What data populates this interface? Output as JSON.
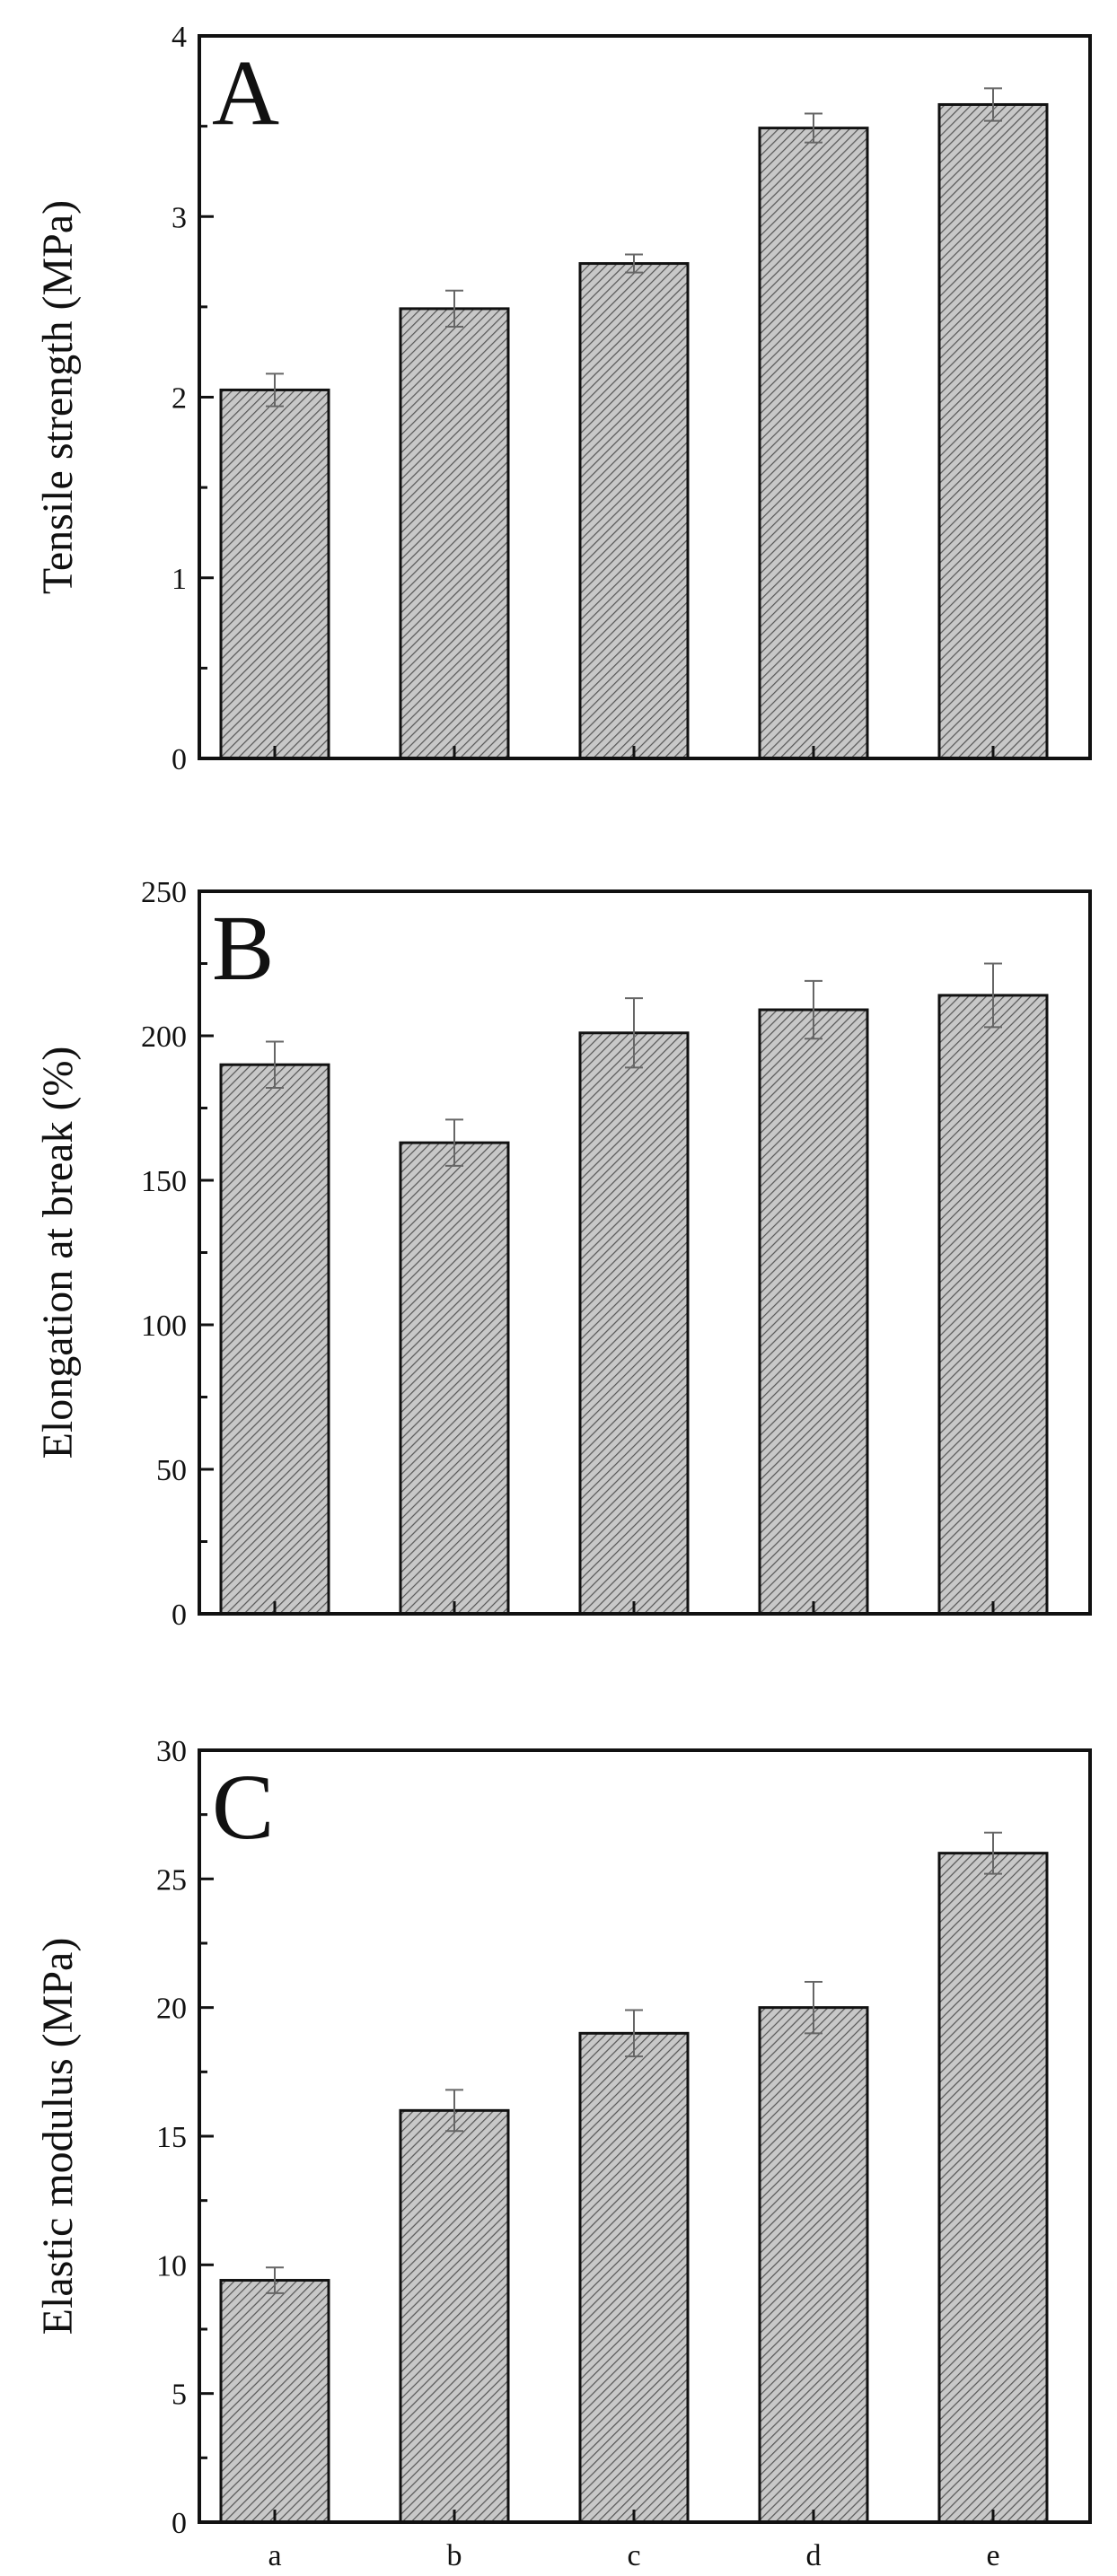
{
  "chart_data": [
    {
      "type": "bar",
      "panel_label": "A",
      "categories": [
        "a",
        "b",
        "c",
        "d",
        "e"
      ],
      "values": [
        2.04,
        2.49,
        2.74,
        3.49,
        3.62
      ],
      "errors": [
        0.09,
        0.1,
        0.05,
        0.08,
        0.09
      ],
      "ylabel": "Tensile strength (MPa)",
      "xlabel": "",
      "ylim": [
        0,
        4
      ],
      "yticks": [
        0,
        1,
        2,
        3,
        4
      ],
      "show_x_tick_labels": false,
      "grid": false
    },
    {
      "type": "bar",
      "panel_label": "B",
      "categories": [
        "a",
        "b",
        "c",
        "d",
        "e"
      ],
      "values": [
        190,
        163,
        201,
        209,
        214
      ],
      "errors": [
        8,
        8,
        12,
        10,
        11
      ],
      "ylabel": "Elongation at break (%)",
      "xlabel": "",
      "ylim": [
        0,
        250
      ],
      "yticks": [
        0,
        50,
        100,
        150,
        200,
        250
      ],
      "show_x_tick_labels": false,
      "grid": false
    },
    {
      "type": "bar",
      "panel_label": "C",
      "categories": [
        "a",
        "b",
        "c",
        "d",
        "e"
      ],
      "values": [
        9.4,
        16.0,
        19.0,
        20.0,
        26.0
      ],
      "errors": [
        0.5,
        0.8,
        0.9,
        1.0,
        0.8
      ],
      "ylabel": "Elastic modulus (MPa)",
      "xlabel": "",
      "ylim": [
        0,
        30
      ],
      "yticks": [
        0,
        5,
        10,
        15,
        20,
        25,
        30
      ],
      "show_x_tick_labels": true,
      "grid": false
    }
  ],
  "style": {
    "bar_fill": "#c8c8c8",
    "bar_hatch": "#555555",
    "bar_edge": "#111111",
    "axis_color": "#111111",
    "error_bar_color": "#666666"
  }
}
